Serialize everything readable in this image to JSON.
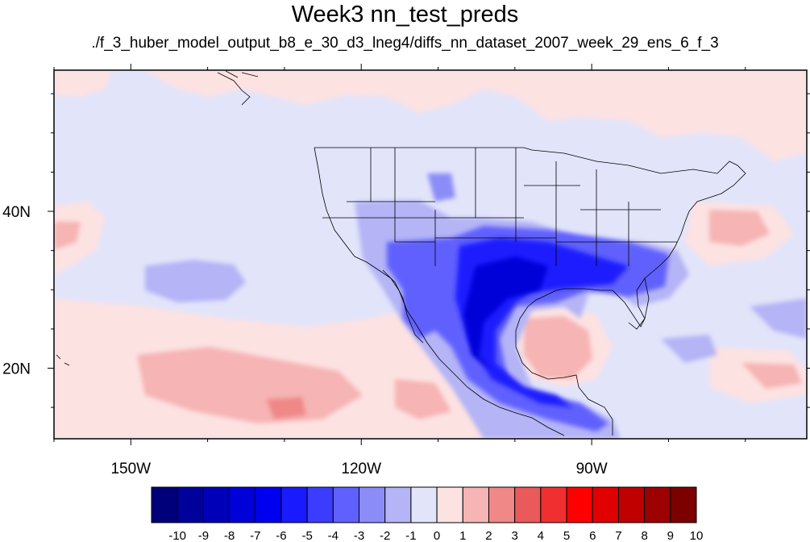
{
  "title": "Week3 nn_test_preds",
  "subtitle": "./f_3_huber_model_output_b8_e_30_d3_lneg4/diffs_nn_dataset_2007_week_29_ens_6_f_3",
  "map": {
    "projection": "cylindrical-equidistant",
    "lon_range": [
      -160,
      -62
    ],
    "lat_range": [
      11,
      58
    ],
    "lon_ticks": [
      {
        "value": -150,
        "label": "150W"
      },
      {
        "value": -120,
        "label": "120W"
      },
      {
        "value": -90,
        "label": "90W"
      }
    ],
    "lat_ticks": [
      {
        "value": 40,
        "label": "40N"
      },
      {
        "value": 20,
        "label": "20N"
      }
    ],
    "background_level": -1,
    "anomalies": [
      {
        "region": "north-pacific-east",
        "level": 1
      },
      {
        "region": "north-pacific-west",
        "level": 1
      },
      {
        "region": "subtropical-pacific",
        "level": 1
      },
      {
        "region": "central-pacific-low",
        "level": -2
      },
      {
        "region": "western-atlantic",
        "level": 1
      },
      {
        "region": "gulf-of-mexico",
        "level": 2
      },
      {
        "region": "eastern-pacific-south",
        "level": 2
      },
      {
        "region": "southern-us",
        "level": -4
      },
      {
        "region": "texas-mexico-core",
        "level": -6
      },
      {
        "region": "central-america",
        "level": -4
      }
    ]
  },
  "colorbar": {
    "labels": [
      "-10",
      "-9",
      "-8",
      "-7",
      "-6",
      "-5",
      "-4",
      "-3",
      "-2",
      "-1",
      "0",
      "1",
      "2",
      "3",
      "4",
      "5",
      "6",
      "7",
      "8",
      "9",
      "10"
    ],
    "colors": [
      "#00007a",
      "#00009a",
      "#0000b8",
      "#0000d8",
      "#0000f0",
      "#1a1aff",
      "#3c3cff",
      "#6060ff",
      "#8c8cf8",
      "#b4b4f6",
      "#e2e4fa",
      "#fde2e2",
      "#f6b4b4",
      "#f08888",
      "#ea5a5a",
      "#f03030",
      "#ff0000",
      "#e00000",
      "#c00000",
      "#9c0000",
      "#7c0000"
    ]
  }
}
